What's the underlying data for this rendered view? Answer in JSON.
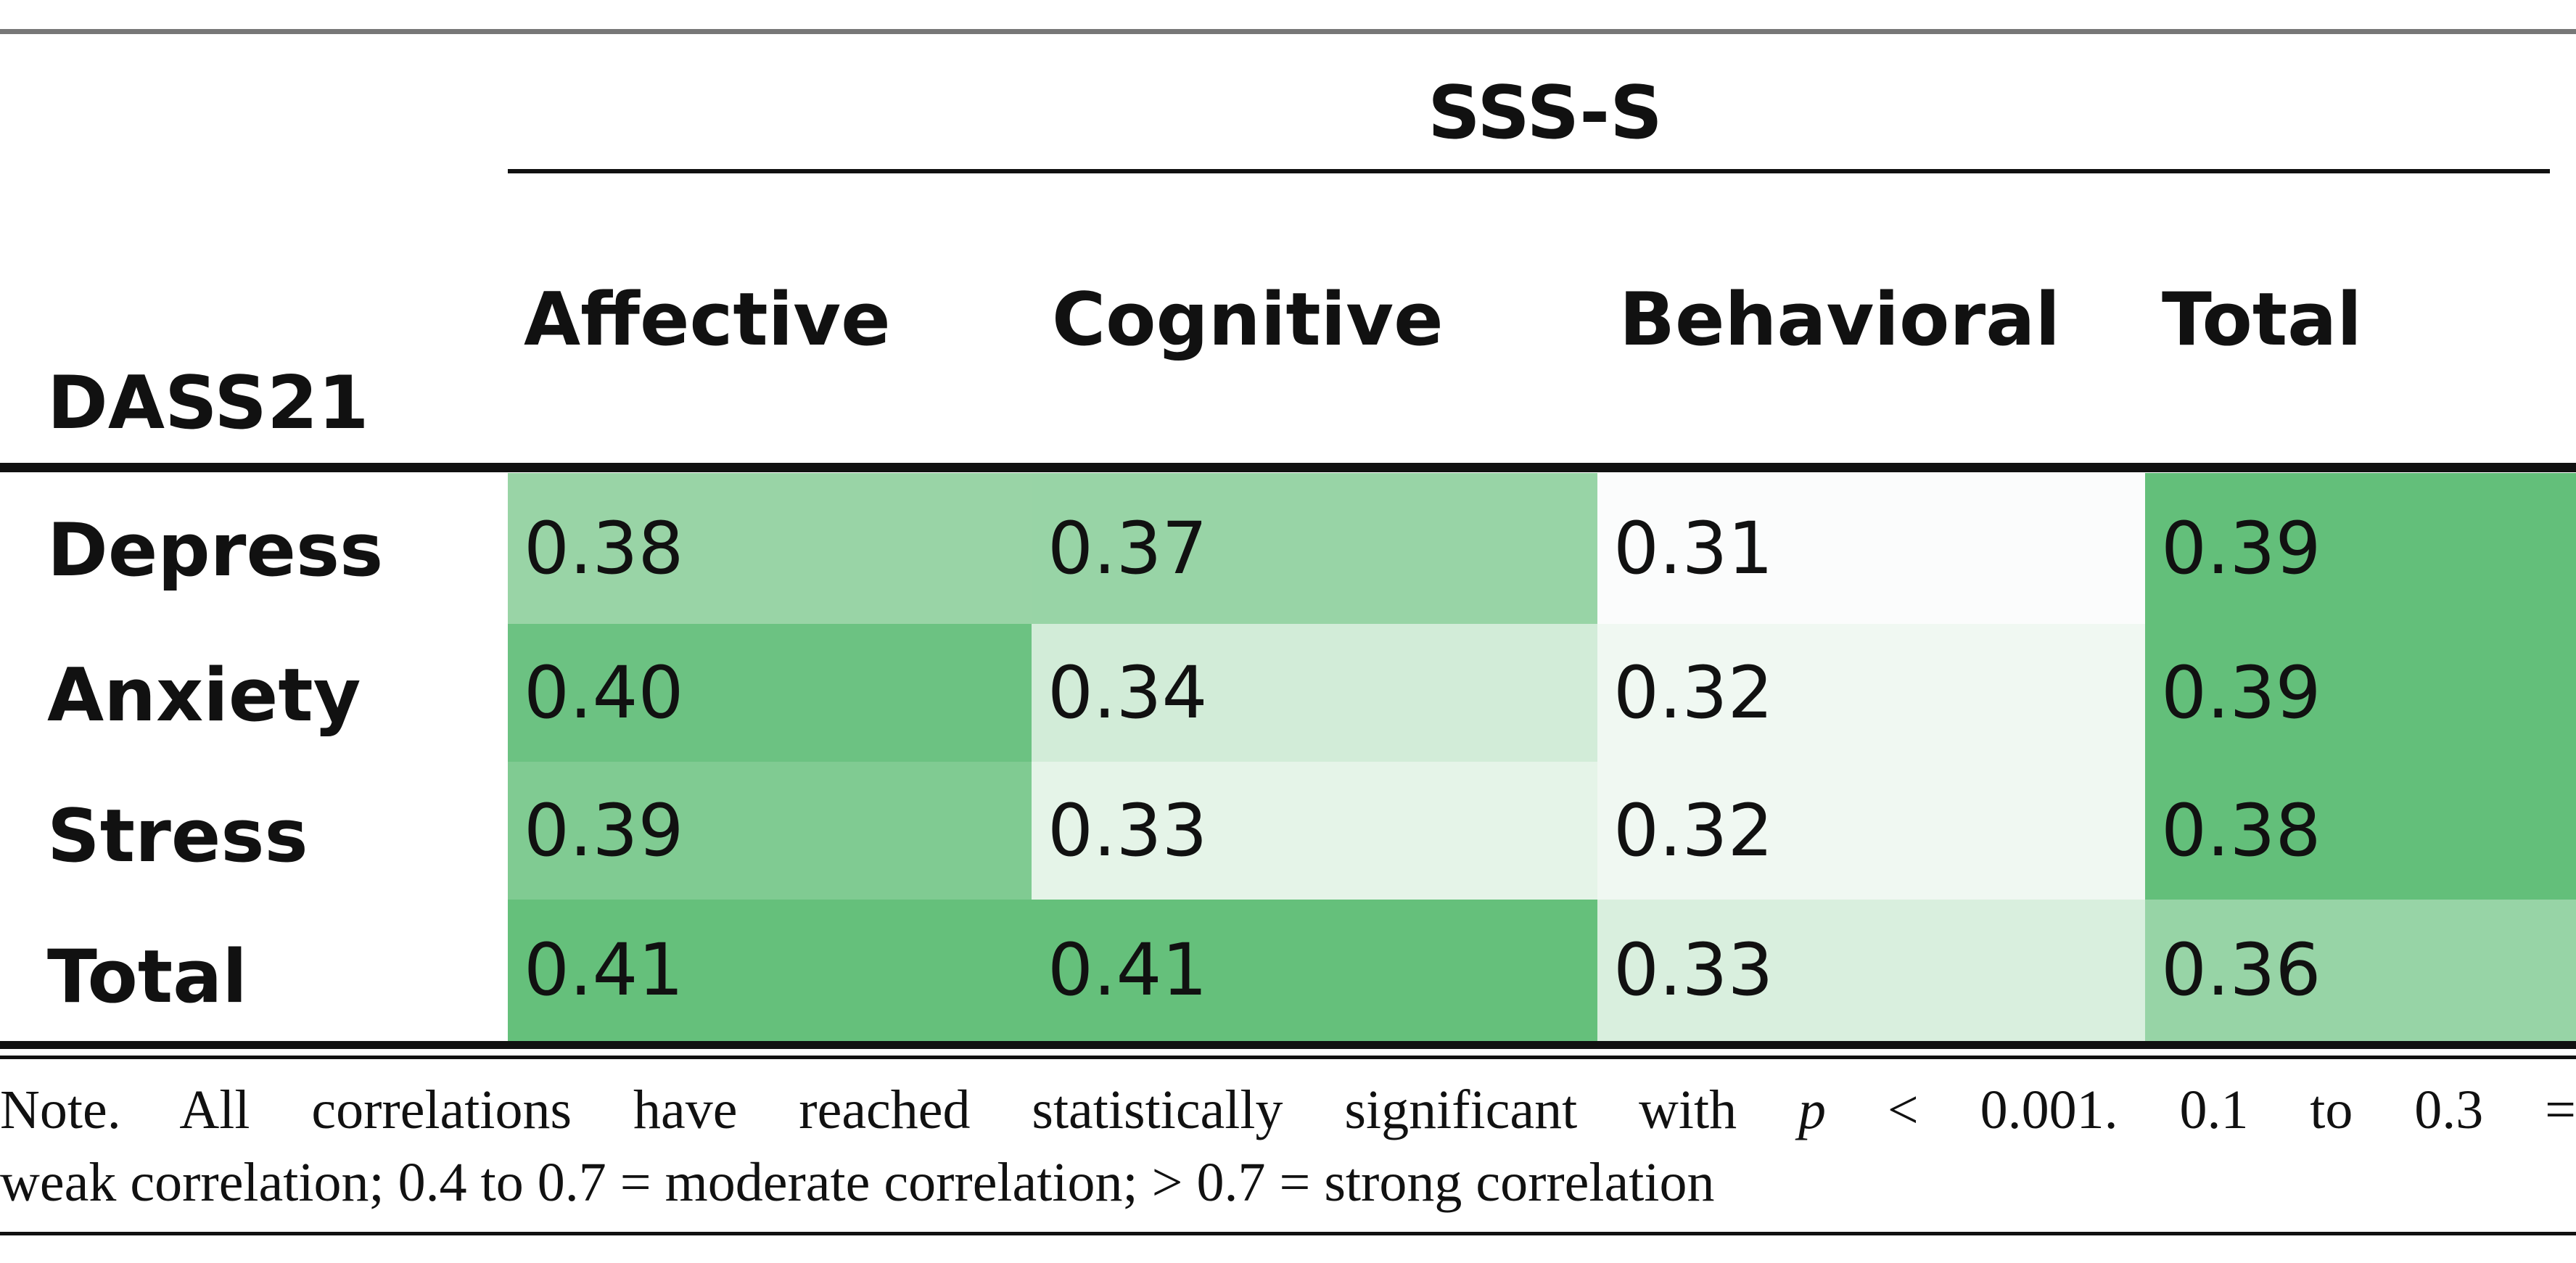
{
  "table": {
    "group_header": "SSS-S",
    "row_header_title": "DASS21",
    "columns": [
      "Affective",
      "Cognitive",
      "Behavioral",
      "Total"
    ],
    "rows": [
      {
        "label": "Depress",
        "values": [
          "0.38",
          "0.37",
          "0.31",
          "0.39"
        ]
      },
      {
        "label": "Anxiety",
        "values": [
          "0.40",
          "0.34",
          "0.32",
          "0.39"
        ]
      },
      {
        "label": "Stress",
        "values": [
          "0.39",
          "0.33",
          "0.32",
          "0.38"
        ]
      },
      {
        "label": "Total",
        "values": [
          "0.41",
          "0.41",
          "0.33",
          "0.36"
        ]
      }
    ],
    "cell_colors": [
      [
        "#99d4a6",
        "#98d4a6",
        "#fbfcfc",
        "#63bf7a"
      ],
      [
        "#6cc282",
        "#d2ecd8",
        "#f0f8f2",
        "#63bf7a"
      ],
      [
        "#80cb92",
        "#e5f4e8",
        "#f0f8f2",
        "#63bf7a"
      ],
      [
        "#65c07b",
        "#65c07b",
        "#d9efde",
        "#97d4a6"
      ]
    ]
  },
  "note": {
    "line1_before_p": "Note. All correlations have reached statistically significant with ",
    "p_symbol": "p",
    "line1_after_p": " < 0.001. 0.1 to 0.3 =",
    "line2": "weak correlation; 0.4 to 0.7 = moderate correlation; > 0.7 = strong correlation"
  }
}
